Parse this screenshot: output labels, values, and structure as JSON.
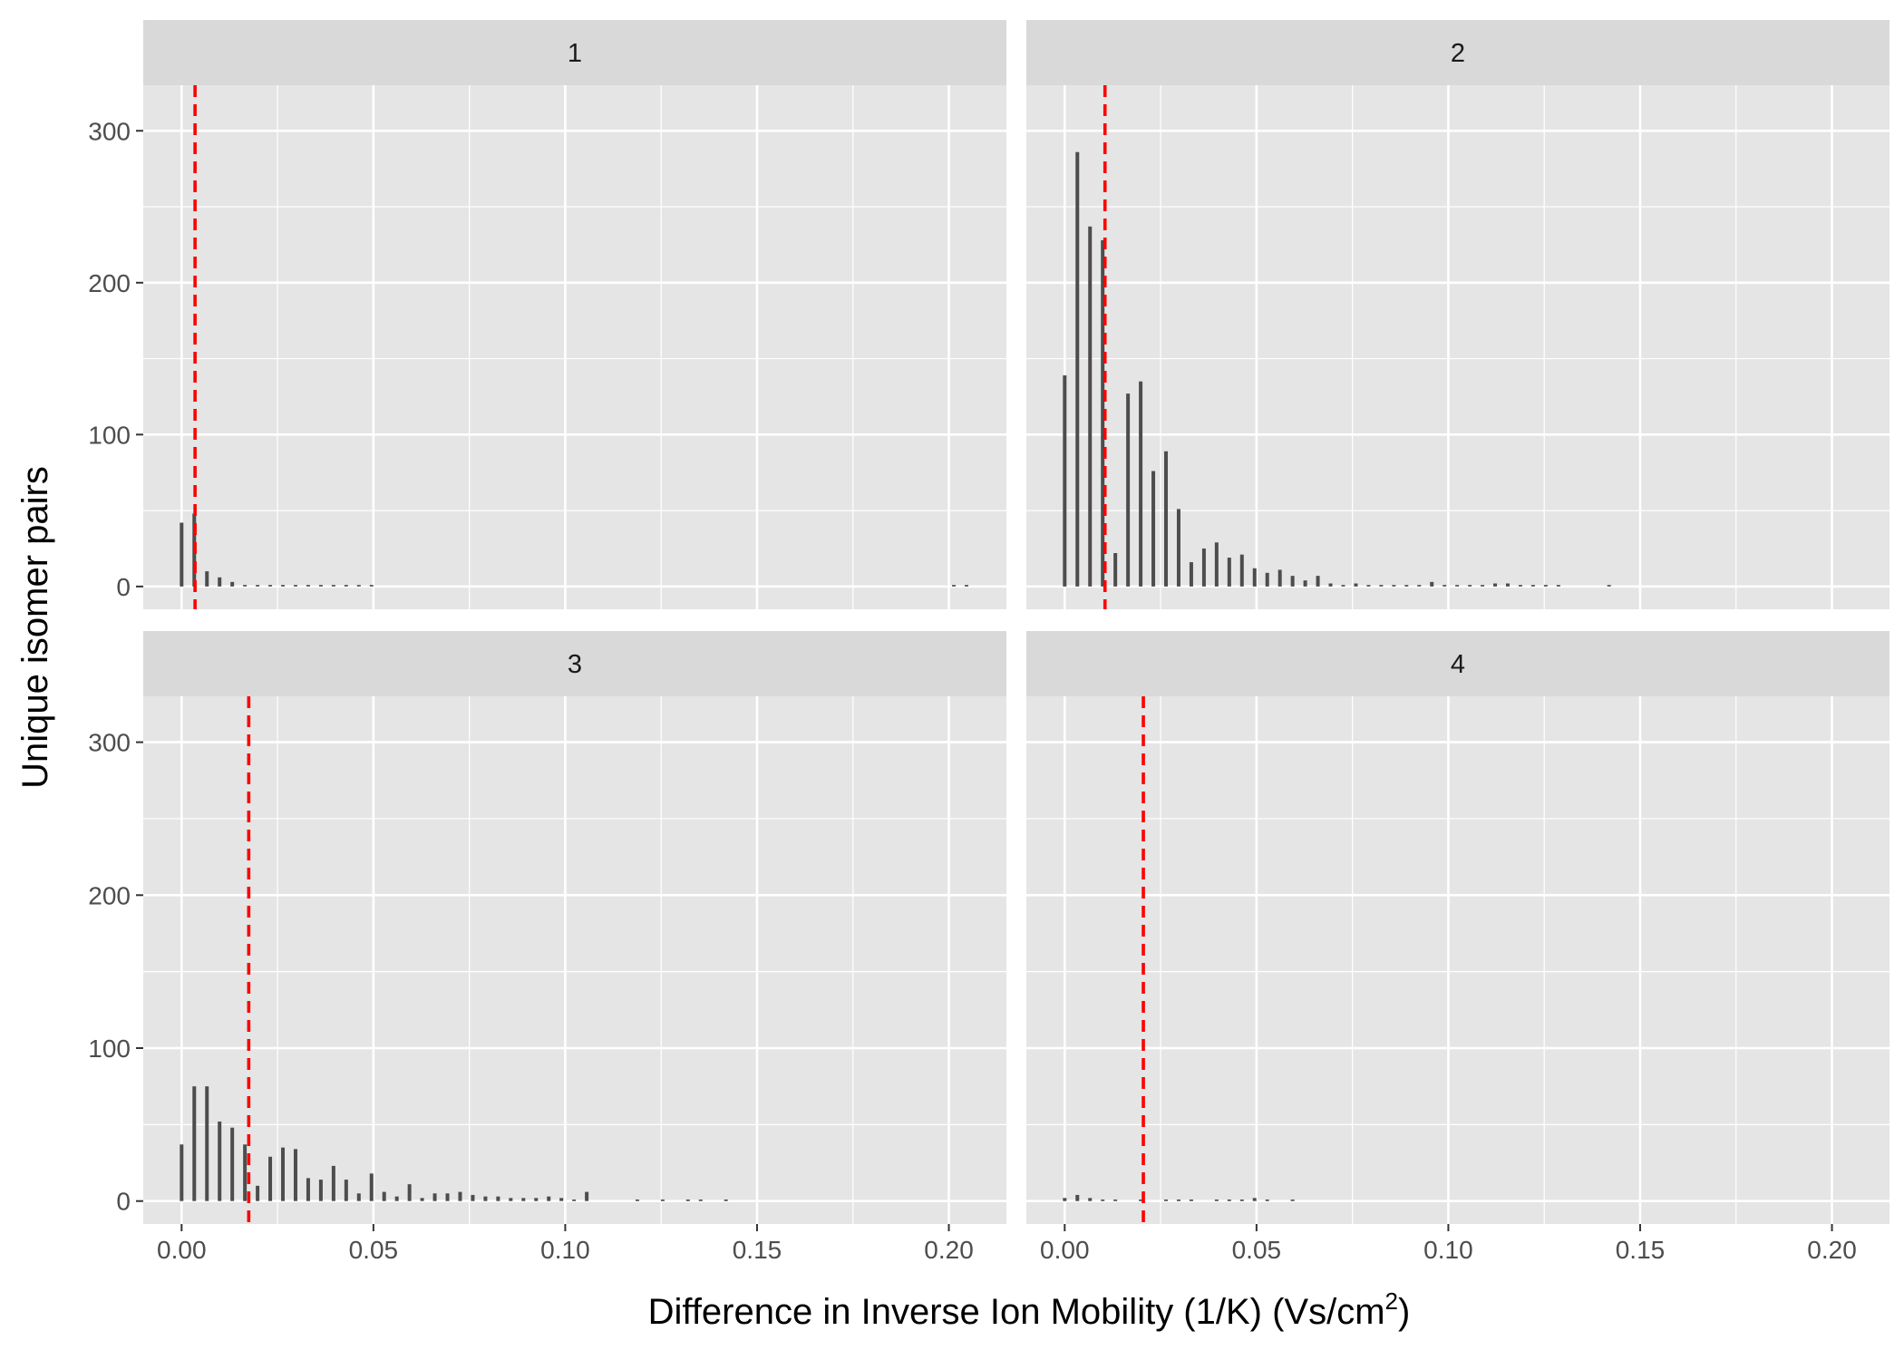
{
  "chart_data": {
    "type": "bar",
    "facets": [
      {
        "label": "1",
        "threshold": 0.0035,
        "bars": [
          [
            0.0,
            42
          ],
          [
            0.0033,
            48
          ],
          [
            0.0066,
            10
          ],
          [
            0.0099,
            6
          ],
          [
            0.0132,
            3
          ],
          [
            0.0165,
            1
          ],
          [
            0.0198,
            1
          ],
          [
            0.0231,
            1
          ],
          [
            0.0264,
            1
          ],
          [
            0.0297,
            1
          ],
          [
            0.033,
            1
          ],
          [
            0.0363,
            1
          ],
          [
            0.0396,
            1
          ],
          [
            0.0429,
            1
          ],
          [
            0.0462,
            1
          ],
          [
            0.0495,
            1
          ],
          [
            0.2013,
            1
          ],
          [
            0.2046,
            1
          ]
        ]
      },
      {
        "label": "2",
        "threshold": 0.0105,
        "bars": [
          [
            0.0,
            139
          ],
          [
            0.0033,
            286
          ],
          [
            0.0066,
            237
          ],
          [
            0.0099,
            228
          ],
          [
            0.0132,
            22
          ],
          [
            0.0165,
            127
          ],
          [
            0.0198,
            135
          ],
          [
            0.0231,
            76
          ],
          [
            0.0264,
            89
          ],
          [
            0.0297,
            51
          ],
          [
            0.033,
            16
          ],
          [
            0.0363,
            25
          ],
          [
            0.0396,
            29
          ],
          [
            0.0429,
            19
          ],
          [
            0.0462,
            21
          ],
          [
            0.0495,
            12
          ],
          [
            0.0528,
            9
          ],
          [
            0.0561,
            11
          ],
          [
            0.0594,
            7
          ],
          [
            0.0627,
            4
          ],
          [
            0.066,
            7
          ],
          [
            0.0693,
            2
          ],
          [
            0.0726,
            1
          ],
          [
            0.0759,
            2
          ],
          [
            0.0792,
            1
          ],
          [
            0.0825,
            1
          ],
          [
            0.0858,
            1
          ],
          [
            0.0891,
            1
          ],
          [
            0.0924,
            1
          ],
          [
            0.0957,
            3
          ],
          [
            0.099,
            1
          ],
          [
            0.1023,
            1
          ],
          [
            0.1056,
            1
          ],
          [
            0.1089,
            1
          ],
          [
            0.1122,
            2
          ],
          [
            0.1155,
            2
          ],
          [
            0.1188,
            1
          ],
          [
            0.1221,
            1
          ],
          [
            0.1254,
            1
          ],
          [
            0.1287,
            1
          ],
          [
            0.1419,
            1
          ]
        ]
      },
      {
        "label": "3",
        "threshold": 0.0175,
        "bars": [
          [
            0.0,
            37
          ],
          [
            0.0033,
            75
          ],
          [
            0.0066,
            75
          ],
          [
            0.0099,
            52
          ],
          [
            0.0132,
            48
          ],
          [
            0.0165,
            37
          ],
          [
            0.0198,
            10
          ],
          [
            0.0231,
            29
          ],
          [
            0.0264,
            35
          ],
          [
            0.0297,
            34
          ],
          [
            0.033,
            15
          ],
          [
            0.0363,
            14
          ],
          [
            0.0396,
            23
          ],
          [
            0.0429,
            14
          ],
          [
            0.0462,
            5
          ],
          [
            0.0495,
            18
          ],
          [
            0.0528,
            6
          ],
          [
            0.0561,
            3
          ],
          [
            0.0594,
            11
          ],
          [
            0.0627,
            2
          ],
          [
            0.066,
            5
          ],
          [
            0.0693,
            5
          ],
          [
            0.0726,
            6
          ],
          [
            0.0759,
            4
          ],
          [
            0.0792,
            3
          ],
          [
            0.0825,
            3
          ],
          [
            0.0858,
            2
          ],
          [
            0.0891,
            2
          ],
          [
            0.0924,
            2
          ],
          [
            0.0957,
            3
          ],
          [
            0.099,
            2
          ],
          [
            0.1023,
            1
          ],
          [
            0.1056,
            6
          ],
          [
            0.1188,
            1
          ],
          [
            0.1254,
            1
          ],
          [
            0.132,
            1
          ],
          [
            0.1353,
            1
          ],
          [
            0.1419,
            1
          ]
        ]
      },
      {
        "label": "4",
        "threshold": 0.0205,
        "bars": [
          [
            0.0,
            2
          ],
          [
            0.0033,
            4
          ],
          [
            0.0066,
            2
          ],
          [
            0.0099,
            1
          ],
          [
            0.0132,
            1
          ],
          [
            0.0198,
            1
          ],
          [
            0.0264,
            1
          ],
          [
            0.0297,
            1
          ],
          [
            0.033,
            1
          ],
          [
            0.0396,
            1
          ],
          [
            0.0429,
            1
          ],
          [
            0.0462,
            1
          ],
          [
            0.0495,
            2
          ],
          [
            0.0528,
            1
          ],
          [
            0.0594,
            1
          ]
        ]
      }
    ],
    "xlim": [
      -0.01,
      0.215
    ],
    "ylim": [
      -15,
      330
    ],
    "x_ticks": [
      "0.00",
      "0.05",
      "0.10",
      "0.15",
      "0.20"
    ],
    "y_ticks": [
      "0",
      "100",
      "200",
      "300"
    ],
    "xlabel": "Difference in Inverse Ion Mobility (1/K) (Vs/cm",
    "xlabel_sup": "2",
    "xlabel_end": ")",
    "ylabel": "Unique isomer pairs",
    "grid": true,
    "colors": {
      "panel": "#e5e5e5",
      "strip": "#d9d9d9",
      "bar": "#4d4d4d",
      "threshold": "#ff0000",
      "grid": "#ffffff"
    }
  }
}
